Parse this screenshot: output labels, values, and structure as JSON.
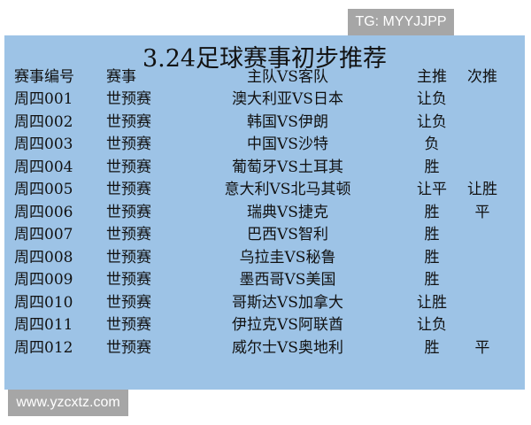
{
  "watermark_top": "TG: MYYJJPP",
  "watermark_bottom": "www.yzcxtz.com",
  "title": "3.24足球赛事初步推荐",
  "headers": [
    "赛事编号",
    "赛事",
    "主队VS客队",
    "主推",
    "次推"
  ],
  "rows": [
    [
      "周四001",
      "世预赛",
      "澳大利亚VS日本",
      "让负",
      ""
    ],
    [
      "周四002",
      "世预赛",
      "韩国VS伊朗",
      "让负",
      ""
    ],
    [
      "周四003",
      "世预赛",
      "中国VS沙特",
      "负",
      ""
    ],
    [
      "周四004",
      "世预赛",
      "葡萄牙VS土耳其",
      "胜",
      ""
    ],
    [
      "周四005",
      "世预赛",
      "意大利VS北马其顿",
      "让平",
      "让胜"
    ],
    [
      "周四006",
      "世预赛",
      "瑞典VS捷克",
      "胜",
      "平"
    ],
    [
      "周四007",
      "世预赛",
      "巴西VS智利",
      "胜",
      ""
    ],
    [
      "周四008",
      "世预赛",
      "乌拉圭VS秘鲁",
      "胜",
      ""
    ],
    [
      "周四009",
      "世预赛",
      "墨西哥VS美国",
      "胜",
      ""
    ],
    [
      "周四010",
      "世预赛",
      "哥斯达VS加拿大",
      "让胜",
      ""
    ],
    [
      "周四011",
      "世预赛",
      "伊拉克VS阿联酋",
      "让负",
      ""
    ],
    [
      "周四012",
      "世预赛",
      "威尔士VS奥地利",
      "胜",
      "平"
    ]
  ],
  "colors": {
    "panel": "#9dc3e6",
    "watermark_bg": "#a6a6a6"
  }
}
